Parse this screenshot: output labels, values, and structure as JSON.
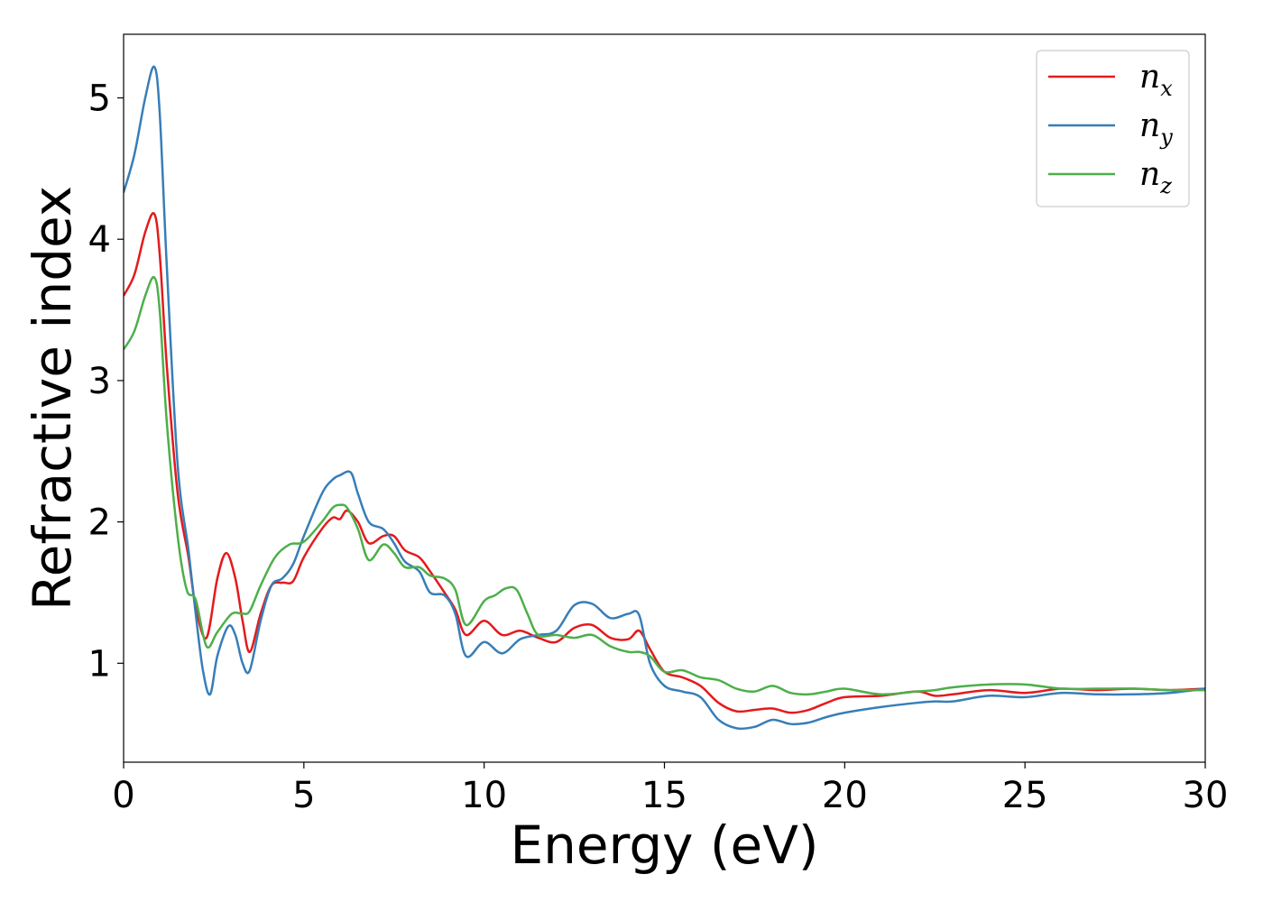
{
  "chart_data": {
    "type": "line",
    "xlabel": "Energy (eV)",
    "ylabel": "Refractive index",
    "xlim": [
      0,
      30
    ],
    "ylim": [
      0.3,
      5.45
    ],
    "xticks": [
      0,
      5,
      10,
      15,
      20,
      25,
      30
    ],
    "yticks": [
      1,
      2,
      3,
      4,
      5
    ],
    "grid": false,
    "legend_placement": "top-right",
    "series": [
      {
        "name": "n",
        "subscript": "x",
        "color": "#e41a1c",
        "x": [
          0,
          0.3,
          0.6,
          0.85,
          1.0,
          1.2,
          1.5,
          1.8,
          2.0,
          2.3,
          2.6,
          2.85,
          3.1,
          3.3,
          3.5,
          3.8,
          4.1,
          4.4,
          4.7,
          5.0,
          5.5,
          5.8,
          6.0,
          6.2,
          6.5,
          6.8,
          7.2,
          7.5,
          7.8,
          8.2,
          8.5,
          8.9,
          9.2,
          9.5,
          10.0,
          10.5,
          11.0,
          11.5,
          12.0,
          12.5,
          13.0,
          13.5,
          14.0,
          14.3,
          14.6,
          15.0,
          15.5,
          16.0,
          16.5,
          17.0,
          17.5,
          18.0,
          18.5,
          19.0,
          19.5,
          20.0,
          21.0,
          22.0,
          22.5,
          23.0,
          24.0,
          25.0,
          26.0,
          27.0,
          28.0,
          29.0,
          30.0
        ],
        "y": [
          3.6,
          3.75,
          4.05,
          4.18,
          3.9,
          3.1,
          2.2,
          1.75,
          1.4,
          1.18,
          1.6,
          1.78,
          1.6,
          1.3,
          1.08,
          1.35,
          1.55,
          1.57,
          1.58,
          1.75,
          1.95,
          2.03,
          2.02,
          2.08,
          2.0,
          1.85,
          1.9,
          1.9,
          1.8,
          1.75,
          1.65,
          1.5,
          1.38,
          1.2,
          1.3,
          1.2,
          1.23,
          1.18,
          1.15,
          1.25,
          1.27,
          1.18,
          1.17,
          1.23,
          1.1,
          0.94,
          0.9,
          0.84,
          0.72,
          0.66,
          0.67,
          0.68,
          0.65,
          0.67,
          0.72,
          0.76,
          0.77,
          0.8,
          0.77,
          0.78,
          0.81,
          0.79,
          0.82,
          0.81,
          0.82,
          0.81,
          0.82
        ]
      },
      {
        "name": "n",
        "subscript": "y",
        "color": "#377eb8",
        "x": [
          0,
          0.3,
          0.6,
          0.85,
          1.0,
          1.2,
          1.5,
          1.8,
          2.0,
          2.2,
          2.4,
          2.6,
          2.9,
          3.1,
          3.3,
          3.5,
          3.8,
          4.1,
          4.4,
          4.7,
          5.0,
          5.5,
          5.8,
          6.0,
          6.3,
          6.5,
          6.8,
          7.2,
          7.5,
          7.8,
          8.2,
          8.5,
          8.9,
          9.2,
          9.5,
          10.0,
          10.5,
          11.0,
          11.5,
          12.0,
          12.5,
          13.0,
          13.5,
          14.0,
          14.3,
          14.6,
          15.0,
          15.5,
          16.0,
          16.5,
          17.0,
          17.5,
          18.0,
          18.5,
          19.0,
          19.5,
          20.0,
          21.0,
          22.0,
          22.5,
          23.0,
          24.0,
          25.0,
          26.0,
          27.0,
          28.0,
          29.0,
          30.0
        ],
        "y": [
          4.33,
          4.6,
          5.0,
          5.22,
          4.9,
          3.8,
          2.4,
          1.8,
          1.35,
          0.95,
          0.78,
          1.05,
          1.26,
          1.2,
          1.0,
          0.95,
          1.3,
          1.55,
          1.6,
          1.7,
          1.9,
          2.2,
          2.3,
          2.33,
          2.35,
          2.2,
          2.0,
          1.95,
          1.85,
          1.72,
          1.65,
          1.5,
          1.48,
          1.35,
          1.05,
          1.15,
          1.07,
          1.17,
          1.2,
          1.23,
          1.41,
          1.42,
          1.32,
          1.35,
          1.34,
          1.0,
          0.84,
          0.8,
          0.76,
          0.6,
          0.54,
          0.55,
          0.6,
          0.57,
          0.58,
          0.62,
          0.65,
          0.69,
          0.72,
          0.73,
          0.73,
          0.77,
          0.76,
          0.79,
          0.78,
          0.78,
          0.79,
          0.82
        ]
      },
      {
        "name": "n",
        "subscript": "z",
        "color": "#4daf4a",
        "x": [
          0,
          0.3,
          0.6,
          0.85,
          1.0,
          1.2,
          1.5,
          1.75,
          2.0,
          2.3,
          2.6,
          3.0,
          3.3,
          3.5,
          3.8,
          4.2,
          4.6,
          5.0,
          5.5,
          5.8,
          6.0,
          6.2,
          6.5,
          6.8,
          7.2,
          7.5,
          7.8,
          8.2,
          8.5,
          8.9,
          9.2,
          9.5,
          10.0,
          10.3,
          10.6,
          10.9,
          11.2,
          11.5,
          12.0,
          12.5,
          13.0,
          13.5,
          14.0,
          14.3,
          14.6,
          15.0,
          15.5,
          16.0,
          16.5,
          17.0,
          17.5,
          18.0,
          18.5,
          19.0,
          19.5,
          20.0,
          21.0,
          22.0,
          22.5,
          23.0,
          24.0,
          25.0,
          26.0,
          27.0,
          28.0,
          29.0,
          30.0
        ],
        "y": [
          3.22,
          3.35,
          3.6,
          3.73,
          3.5,
          2.7,
          1.9,
          1.52,
          1.45,
          1.12,
          1.22,
          1.35,
          1.35,
          1.37,
          1.55,
          1.75,
          1.84,
          1.86,
          2.0,
          2.1,
          2.12,
          2.1,
          1.95,
          1.73,
          1.84,
          1.78,
          1.68,
          1.68,
          1.62,
          1.6,
          1.52,
          1.27,
          1.44,
          1.48,
          1.53,
          1.52,
          1.35,
          1.2,
          1.2,
          1.18,
          1.2,
          1.12,
          1.08,
          1.08,
          1.05,
          0.94,
          0.95,
          0.9,
          0.88,
          0.82,
          0.8,
          0.84,
          0.79,
          0.78,
          0.8,
          0.82,
          0.78,
          0.8,
          0.81,
          0.83,
          0.85,
          0.85,
          0.82,
          0.82,
          0.82,
          0.81,
          0.81
        ]
      }
    ]
  }
}
